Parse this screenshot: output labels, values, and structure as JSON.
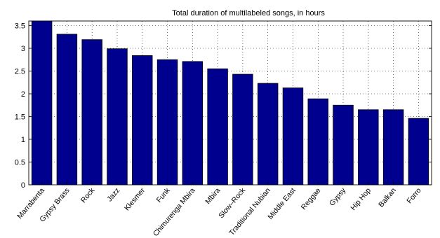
{
  "chart_data": {
    "type": "bar",
    "title": "Total duration of multilabeled songs, in hours",
    "xlabel": "",
    "ylabel": "",
    "categories": [
      "Marrabenta",
      "Gypsy Brass",
      "Rock",
      "Jazz",
      "Klesmer",
      "Funk",
      "Chimurenga Mbira",
      "Mbira",
      "Slow–Rock",
      "Traditional Nubian",
      "Middle East",
      "Reggae",
      "Gypsy",
      "Hip Hop",
      "Balkan",
      "Forro"
    ],
    "values": [
      3.6,
      3.31,
      3.19,
      2.99,
      2.84,
      2.75,
      2.71,
      2.55,
      2.43,
      2.23,
      2.13,
      1.89,
      1.75,
      1.65,
      1.65,
      1.46
    ],
    "ylim": [
      0,
      3.6
    ],
    "yticks": [
      "0",
      "0.5",
      "1",
      "1.5",
      "2",
      "2.5",
      "3",
      "3.5"
    ],
    "grid": true,
    "bar_color": "#00008f",
    "bar_edge_color": "#000000"
  }
}
